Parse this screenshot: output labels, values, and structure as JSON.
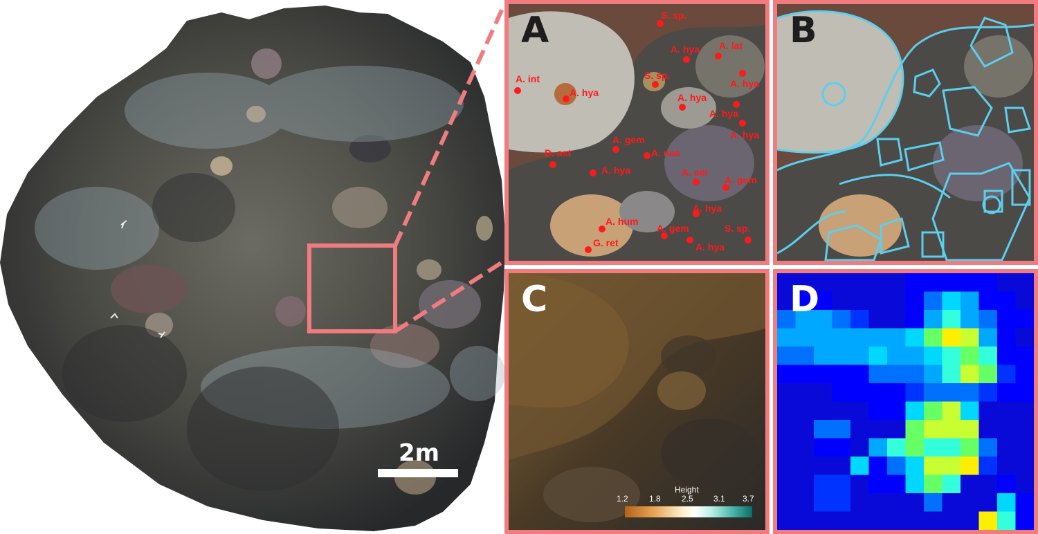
{
  "panels": {
    "a": {
      "letter": "A"
    },
    "b": {
      "letter": "B"
    },
    "c": {
      "letter": "C"
    },
    "d": {
      "letter": "D"
    }
  },
  "scale_bar": {
    "label": "2m"
  },
  "species_labels": [
    "S. sp.",
    "A. hya",
    "A. lat",
    "A. int",
    "A. hya",
    "S. sp.",
    "A. hya",
    "A. hya",
    "A. hya",
    "A. hya",
    "D. ast",
    "A. gem",
    "A. nas",
    "A. hya",
    "A. sel",
    "A. gem",
    "A. hya",
    "A. hum",
    "A. gem",
    "S. sp.",
    "G. ret",
    "A. hya"
  ],
  "height_legend": {
    "title": "Height",
    "ticks": [
      "1.2",
      "1.8",
      "2.5",
      "3.1",
      "3.7"
    ]
  },
  "colors": {
    "frame": "#f07c80",
    "outline": "#5ccfee",
    "label": "#ff1a1a"
  }
}
